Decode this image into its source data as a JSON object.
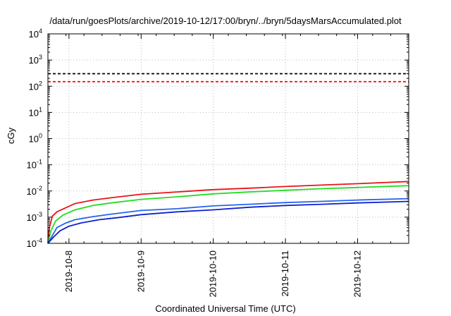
{
  "chart_data": {
    "type": "line",
    "title": "/data/run/goesPlots/archive/2019-10-12/17:00/bryn/../bryn/5daysMarsAccumulated.plot",
    "xlabel": "Coordinated Universal Time (UTC)",
    "ylabel": "cGy",
    "yscale": "log",
    "ylim": [
      0.0001,
      10000
    ],
    "xlim": [
      "2019-10-07T17:00",
      "2019-10-12T17:00"
    ],
    "grid": true,
    "x_ticks": [
      "2019-10-8",
      "2019-10-9",
      "2019-10-10",
      "2019-10-11",
      "2019-10-12"
    ],
    "y_ticks": [
      {
        "base": "10",
        "exp": "-4"
      },
      {
        "base": "10",
        "exp": "-3"
      },
      {
        "base": "10",
        "exp": "-2"
      },
      {
        "base": "10",
        "exp": "-1"
      },
      {
        "base": "10",
        "exp": "0"
      },
      {
        "base": "10",
        "exp": "1"
      },
      {
        "base": "10",
        "exp": "2"
      },
      {
        "base": "10",
        "exp": "3"
      },
      {
        "base": "10",
        "exp": "4"
      }
    ],
    "reference_lines": [
      {
        "color": "#000000",
        "style": "dashed",
        "y": 300
      },
      {
        "color": "#ff0000",
        "style": "dashed",
        "y": 150
      }
    ],
    "series": [
      {
        "color": "#e8141b",
        "points": [
          [
            "2019-10-07T17:00",
            0.0001
          ],
          [
            "2019-10-07T17:30",
            0.0004
          ],
          [
            "2019-10-07T18:30",
            0.0011
          ],
          [
            "2019-10-07T20:00",
            0.0016
          ],
          [
            "2019-10-07T23:00",
            0.0023
          ],
          [
            "2019-10-08T02:00",
            0.0033
          ],
          [
            "2019-10-08T08:00",
            0.0045
          ],
          [
            "2019-10-08T14:00",
            0.0055
          ],
          [
            "2019-10-09T00:00",
            0.0075
          ],
          [
            "2019-10-09T12:00",
            0.0092
          ],
          [
            "2019-10-10T00:00",
            0.0113
          ],
          [
            "2019-10-10T12:00",
            0.0128
          ],
          [
            "2019-10-11T00:00",
            0.0148
          ],
          [
            "2019-10-11T12:00",
            0.0168
          ],
          [
            "2019-10-12T00:00",
            0.019
          ],
          [
            "2019-10-12T17:00",
            0.023
          ]
        ]
      },
      {
        "color": "#22dd22",
        "points": [
          [
            "2019-10-07T17:00",
            0.0001
          ],
          [
            "2019-10-07T18:00",
            0.0003
          ],
          [
            "2019-10-07T19:30",
            0.0007
          ],
          [
            "2019-10-07T22:00",
            0.0012
          ],
          [
            "2019-10-08T02:00",
            0.0019
          ],
          [
            "2019-10-08T08:00",
            0.0028
          ],
          [
            "2019-10-08T14:00",
            0.0035
          ],
          [
            "2019-10-09T00:00",
            0.0048
          ],
          [
            "2019-10-09T12:00",
            0.006
          ],
          [
            "2019-10-10T00:00",
            0.0078
          ],
          [
            "2019-10-10T12:00",
            0.0092
          ],
          [
            "2019-10-11T00:00",
            0.0106
          ],
          [
            "2019-10-11T12:00",
            0.0122
          ],
          [
            "2019-10-12T00:00",
            0.0136
          ],
          [
            "2019-10-12T17:00",
            0.016
          ]
        ]
      },
      {
        "color": "#2266ee",
        "points": [
          [
            "2019-10-07T17:00",
            0.0001
          ],
          [
            "2019-10-07T18:30",
            0.0002
          ],
          [
            "2019-10-07T20:00",
            0.0004
          ],
          [
            "2019-10-07T23:00",
            0.0006
          ],
          [
            "2019-10-08T02:00",
            0.0008
          ],
          [
            "2019-10-08T08:00",
            0.00105
          ],
          [
            "2019-10-08T14:00",
            0.0013
          ],
          [
            "2019-10-09T00:00",
            0.0018
          ],
          [
            "2019-10-09T12:00",
            0.0021
          ],
          [
            "2019-10-10T00:00",
            0.0027
          ],
          [
            "2019-10-10T12:00",
            0.0031
          ],
          [
            "2019-10-11T00:00",
            0.0036
          ],
          [
            "2019-10-11T12:00",
            0.004
          ],
          [
            "2019-10-12T00:00",
            0.0045
          ],
          [
            "2019-10-12T17:00",
            0.0051
          ]
        ]
      },
      {
        "color": "#1020d0",
        "points": [
          [
            "2019-10-07T17:00",
            0.0001
          ],
          [
            "2019-10-07T19:00",
            0.00018
          ],
          [
            "2019-10-07T21:00",
            0.0003
          ],
          [
            "2019-10-08T00:00",
            0.00045
          ],
          [
            "2019-10-08T04:00",
            0.0006
          ],
          [
            "2019-10-08T10:00",
            0.0008
          ],
          [
            "2019-10-08T16:00",
            0.00095
          ],
          [
            "2019-10-09T00:00",
            0.00125
          ],
          [
            "2019-10-09T12:00",
            0.0016
          ],
          [
            "2019-10-10T00:00",
            0.0019
          ],
          [
            "2019-10-10T12:00",
            0.0024
          ],
          [
            "2019-10-11T00:00",
            0.0028
          ],
          [
            "2019-10-11T12:00",
            0.0031
          ],
          [
            "2019-10-12T00:00",
            0.0035
          ],
          [
            "2019-10-12T17:00",
            0.004
          ]
        ]
      }
    ]
  }
}
